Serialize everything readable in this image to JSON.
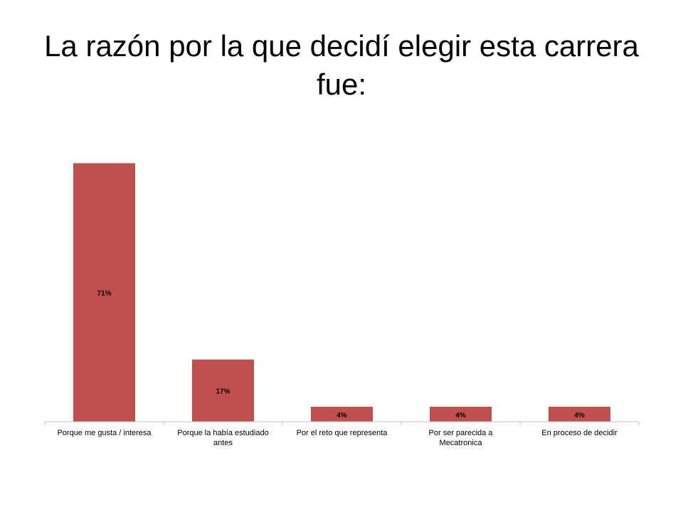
{
  "slide": {
    "title": "La razón por la que decidí elegir esta carrera fue:"
  },
  "colors": {
    "bar": "#c0504d",
    "bar_border": "#b9504c",
    "axis": "#bfbfbf"
  },
  "chart_data": {
    "type": "bar",
    "title": "La razón por la que decidí elegir esta carrera fue:",
    "categories": [
      "Porque me gusta / interesa",
      "Porque la había estudiado antes",
      "Por el reto que representa",
      "Por ser parecida a Mecatronica",
      "En proceso de decidir"
    ],
    "category_lines": [
      [
        "Porque me gusta / interesa"
      ],
      [
        "Porque la había estudiado",
        "antes"
      ],
      [
        "Por el reto que representa"
      ],
      [
        "Por ser parecida a",
        "Mecatronica"
      ],
      [
        "En proceso de decidir"
      ]
    ],
    "values": [
      71,
      17,
      4,
      4,
      4
    ],
    "data_labels": [
      "71%",
      "17%",
      "4%",
      "4%",
      "4%"
    ],
    "unit": "%",
    "ylim": [
      0,
      71
    ],
    "grid": false,
    "legend": "none"
  }
}
